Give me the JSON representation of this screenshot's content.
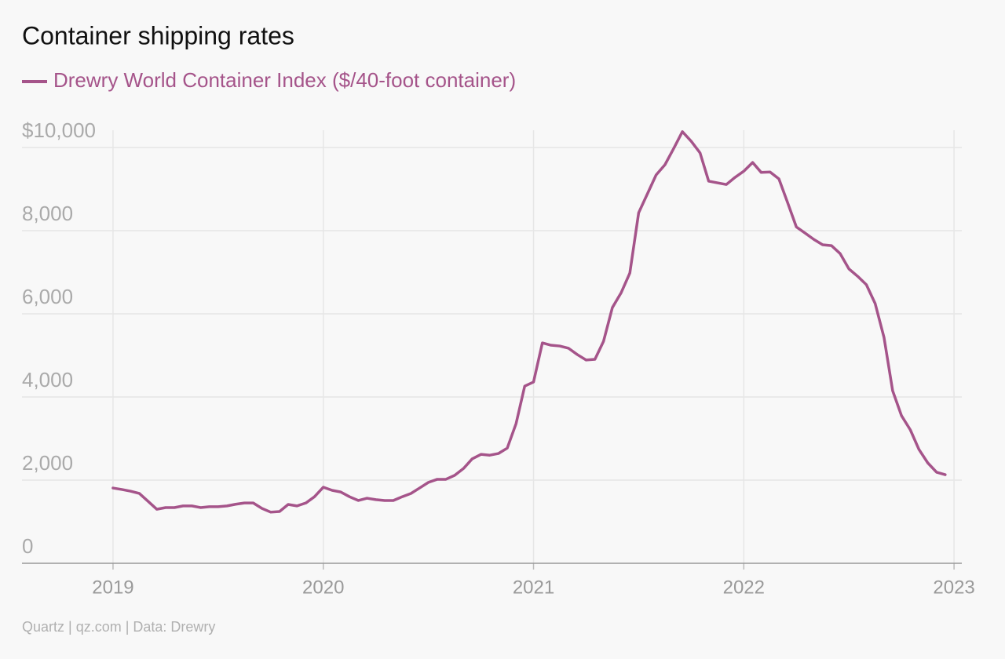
{
  "chart_data": {
    "type": "line",
    "title": "Container shipping rates",
    "source": "Quartz | qz.com | Data: Drewry",
    "xlim": [
      2018.567,
      2023.037
    ],
    "xticks": [
      2019,
      2020,
      2021,
      2022,
      2023
    ],
    "ylim": [
      0,
      10500
    ],
    "yticks": [
      0,
      {
        "value": 2000,
        "label": "2,000"
      },
      {
        "value": 4000,
        "label": "4,000"
      },
      {
        "value": 6000,
        "label": "6,000"
      },
      {
        "value": 8000,
        "label": "8,000"
      },
      {
        "value": 10000,
        "label": "$10,000"
      }
    ],
    "grid": true,
    "x": [
      2019.0,
      2019.042,
      2019.083,
      2019.125,
      2019.167,
      2019.208,
      2019.25,
      2019.292,
      2019.333,
      2019.375,
      2019.417,
      2019.458,
      2019.5,
      2019.542,
      2019.583,
      2019.625,
      2019.667,
      2019.708,
      2019.75,
      2019.792,
      2019.833,
      2019.875,
      2019.917,
      2019.958,
      2020.0,
      2020.042,
      2020.083,
      2020.125,
      2020.167,
      2020.208,
      2020.25,
      2020.292,
      2020.333,
      2020.375,
      2020.417,
      2020.458,
      2020.5,
      2020.542,
      2020.583,
      2020.625,
      2020.667,
      2020.708,
      2020.75,
      2020.792,
      2020.833,
      2020.875,
      2020.917,
      2020.958,
      2021.0,
      2021.042,
      2021.083,
      2021.125,
      2021.167,
      2021.208,
      2021.25,
      2021.292,
      2021.333,
      2021.375,
      2021.417,
      2021.458,
      2021.5,
      2021.542,
      2021.583,
      2021.625,
      2021.667,
      2021.708,
      2021.75,
      2021.792,
      2021.833,
      2021.875,
      2021.917,
      2021.958,
      2022.0,
      2022.042,
      2022.083,
      2022.125,
      2022.167,
      2022.208,
      2022.25,
      2022.292,
      2022.333,
      2022.375,
      2022.417,
      2022.458,
      2022.5,
      2022.542,
      2022.583,
      2022.625,
      2022.667,
      2022.708,
      2022.75,
      2022.792,
      2022.833,
      2022.875,
      2022.917,
      2022.958
    ],
    "series": [
      {
        "name": "Drewry World Container Index ($/40-foot container)",
        "color": "#a5548a",
        "values": [
          1810,
          1775,
          1735,
          1680,
          1490,
          1300,
          1340,
          1340,
          1380,
          1380,
          1340,
          1360,
          1360,
          1380,
          1420,
          1450,
          1450,
          1320,
          1230,
          1245,
          1415,
          1380,
          1450,
          1600,
          1830,
          1755,
          1715,
          1600,
          1510,
          1565,
          1530,
          1510,
          1510,
          1600,
          1680,
          1810,
          1945,
          2020,
          2020,
          2115,
          2280,
          2510,
          2620,
          2600,
          2640,
          2770,
          3360,
          4260,
          4360,
          5300,
          5245,
          5225,
          5170,
          5020,
          4890,
          4905,
          5340,
          6150,
          6510,
          6980,
          8430,
          8890,
          9340,
          9585,
          9980,
          10380,
          10150,
          9870,
          9190,
          9150,
          9110,
          9280,
          9430,
          9640,
          9400,
          9410,
          9245,
          8680,
          8090,
          7940,
          7790,
          7660,
          7640,
          7450,
          7080,
          6900,
          6700,
          6245,
          5430,
          4150,
          3550,
          3210,
          2740,
          2415,
          2190,
          2130
        ]
      }
    ]
  }
}
